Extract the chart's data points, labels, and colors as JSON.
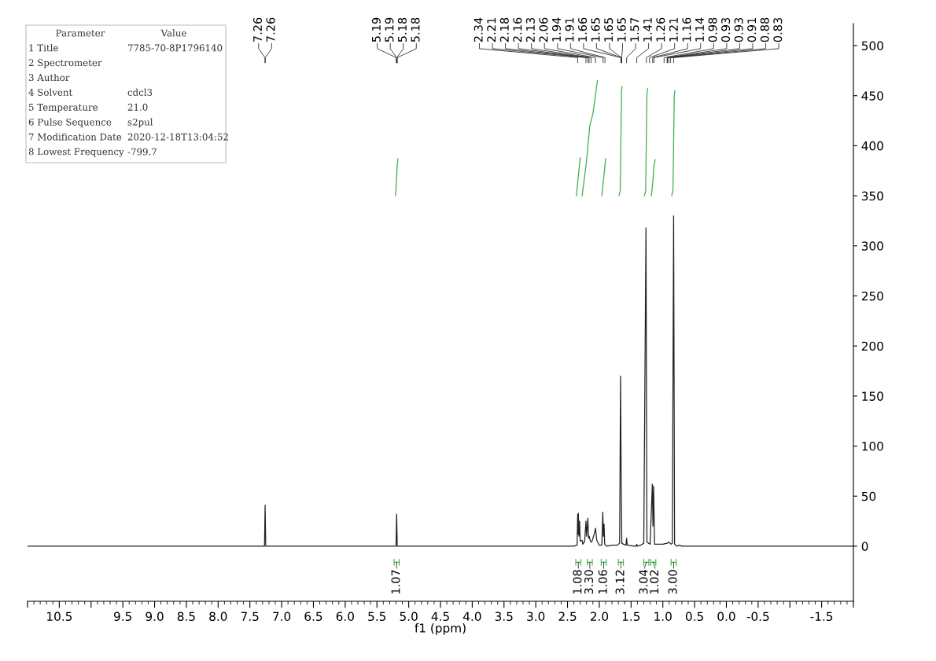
{
  "chart_data": {
    "type": "line",
    "xlabel": "f1 (ppm)",
    "xlim": [
      11.0,
      -2.0
    ],
    "xticks": [
      {
        "value": 11.0,
        "label": null
      },
      10.5,
      {
        "value": 10.0,
        "label": null
      },
      9.5,
      {
        "value": 9.0,
        "label": "9.0"
      },
      8.5,
      {
        "value": 8.0,
        "label": "8.0"
      },
      7.5,
      {
        "value": 7.0,
        "label": "7.0"
      },
      6.5,
      {
        "value": 6.0,
        "label": "6.0"
      },
      5.5,
      {
        "value": 5.0,
        "label": "5.0"
      },
      4.5,
      {
        "value": 4.0,
        "label": "4.0"
      },
      3.5,
      {
        "value": 3.0,
        "label": "3.0"
      },
      2.5,
      {
        "value": 2.0,
        "label": "2.0"
      },
      1.5,
      {
        "value": 1.0,
        "label": "1.0"
      },
      0.5,
      {
        "value": 0.0,
        "label": "0.0"
      },
      -0.5,
      {
        "value": -1.0,
        "label": null
      },
      -1.5,
      {
        "value": -2.0,
        "label": null
      }
    ],
    "ylim": [
      -55,
      522
    ],
    "yticks": [
      0,
      50,
      100,
      150,
      200,
      250,
      300,
      350,
      400,
      450,
      500
    ],
    "grid": false,
    "line_style": "solid",
    "series": [
      {
        "color": "#222222",
        "x": [
          11.0,
          7.3,
          7.27,
          7.26,
          7.25,
          5.23,
          5.2,
          5.19,
          5.18,
          5.15,
          2.4,
          2.35,
          2.34,
          2.335,
          2.33,
          2.32,
          2.31,
          2.3,
          2.27,
          2.26,
          2.23,
          2.21,
          2.2,
          2.18,
          2.17,
          2.16,
          2.14,
          2.12,
          2.08,
          2.06,
          2.04,
          2.0,
          1.96,
          1.945,
          1.935,
          1.925,
          1.915,
          1.88,
          1.8,
          1.72,
          1.68,
          1.665,
          1.655,
          1.645,
          1.62,
          1.58,
          1.57,
          1.56,
          1.45,
          1.42,
          1.41,
          1.4,
          1.35,
          1.3,
          1.265,
          1.25,
          1.2,
          1.165,
          1.155,
          1.145,
          1.13,
          1.0,
          0.93,
          0.9,
          0.87,
          0.85,
          0.83,
          0.815,
          0.78,
          0.74,
          0.7,
          -2.0
        ],
        "values": [
          0,
          0,
          0,
          41,
          0,
          0,
          0,
          32,
          0,
          0,
          0,
          1,
          32,
          12,
          33,
          10,
          25,
          5,
          6,
          2,
          5,
          25,
          10,
          28,
          8,
          10,
          5,
          4,
          12,
          18,
          6,
          1,
          1,
          34,
          10,
          22,
          2,
          0,
          1,
          1,
          3,
          170,
          60,
          3,
          2,
          1,
          8,
          1,
          0,
          0,
          2,
          0,
          1,
          3,
          318,
          4,
          2,
          62,
          20,
          60,
          2,
          2,
          3,
          4,
          2,
          3,
          330,
          2,
          0,
          1,
          0,
          0
        ]
      },
      {
        "color": "#3cb043",
        "x": [
          5.21,
          5.2,
          5.18,
          5.17
        ],
        "values": [
          350,
          356,
          381,
          387
        ]
      },
      {
        "color": "#3cb043",
        "x": [
          2.36,
          2.33,
          2.3
        ],
        "values": [
          350,
          370,
          388
        ]
      },
      {
        "color": "#3cb043",
        "x": [
          2.27,
          2.2,
          2.15,
          2.1,
          2.03
        ],
        "values": [
          350,
          385,
          420,
          432,
          465
        ]
      },
      {
        "color": "#3cb043",
        "x": [
          1.96,
          1.93,
          1.9
        ],
        "values": [
          350,
          368,
          387
        ]
      },
      {
        "color": "#3cb043",
        "x": [
          1.69,
          1.67,
          1.65,
          1.64
        ],
        "values": [
          350,
          355,
          455,
          459
        ]
      },
      {
        "color": "#3cb043",
        "x": [
          1.29,
          1.27,
          1.25,
          1.24
        ],
        "values": [
          350,
          355,
          452,
          457
        ]
      },
      {
        "color": "#3cb043",
        "x": [
          1.18,
          1.16,
          1.14,
          1.12
        ],
        "values": [
          350,
          362,
          380,
          386
        ]
      },
      {
        "color": "#3cb043",
        "x": [
          0.86,
          0.84,
          0.82,
          0.81
        ],
        "values": [
          350,
          356,
          450,
          455
        ]
      }
    ],
    "annotations": [
      "Parameter\tValue",
      "1 Title\t7785-70-8P1796140",
      "2 Spectrometer",
      "3 Author",
      "4 Solvent\tcdcl3",
      "5 Temperature\t21.0",
      "6 Pulse Sequence\ts2pul",
      "7 Modification Date\t2020-12-18T13:04:52",
      "8 Lowest Frequency\t-799.7",
      {
        "text": "7.26",
        "x": 7.262
      },
      {
        "text": "7.26",
        "x": 7.258
      },
      {
        "text": "5.19",
        "x": 5.195
      },
      {
        "text": "5.19",
        "x": 5.19
      },
      {
        "text": "5.18",
        "x": 5.185
      },
      {
        "text": "5.18",
        "x": 5.18
      },
      {
        "text": "2.34",
        "x": 2.34
      },
      {
        "text": "2.21",
        "x": 2.21
      },
      {
        "text": "2.18",
        "x": 2.18
      },
      {
        "text": "2.16",
        "x": 2.16
      },
      {
        "text": "2.13",
        "x": 2.13
      },
      {
        "text": "2.06",
        "x": 2.06
      },
      {
        "text": "1.94",
        "x": 1.94
      },
      {
        "text": "1.91",
        "x": 1.91
      },
      {
        "text": "1.66",
        "x": 1.66
      },
      {
        "text": "1.65",
        "x": 1.654
      },
      {
        "text": "1.65",
        "x": 1.652
      },
      {
        "text": "1.65",
        "x": 1.648
      },
      {
        "text": "1.57",
        "x": 1.57
      },
      {
        "text": "1.41",
        "x": 1.41
      },
      {
        "text": "1.26",
        "x": 1.26
      },
      {
        "text": "1.21",
        "x": 1.21
      },
      {
        "text": "1.16",
        "x": 1.16
      },
      {
        "text": "1.14",
        "x": 1.14
      },
      {
        "text": "0.98",
        "x": 0.98
      },
      {
        "text": "0.93",
        "x": 0.932
      },
      {
        "text": "0.93",
        "x": 0.928
      },
      {
        "text": "0.91",
        "x": 0.91
      },
      {
        "text": "0.88",
        "x": 0.88
      },
      {
        "text": "0.83",
        "x": 0.83
      },
      {
        "text": "1.07",
        "x": 5.19,
        "y": -16
      },
      {
        "text": "1.08",
        "x": 2.33,
        "y": -16
      },
      {
        "text": "3.30",
        "x": 2.15,
        "y": -16
      },
      {
        "text": "1.06",
        "x": 1.93,
        "y": -16
      },
      {
        "text": "3.12",
        "x": 1.66,
        "y": -16
      },
      {
        "text": "3.04",
        "x": 1.26,
        "y": -16
      },
      {
        "text": "1.02",
        "x": 1.15,
        "y": -16
      },
      {
        "text": "3.00",
        "x": 0.83,
        "y": -16
      }
    ]
  }
}
